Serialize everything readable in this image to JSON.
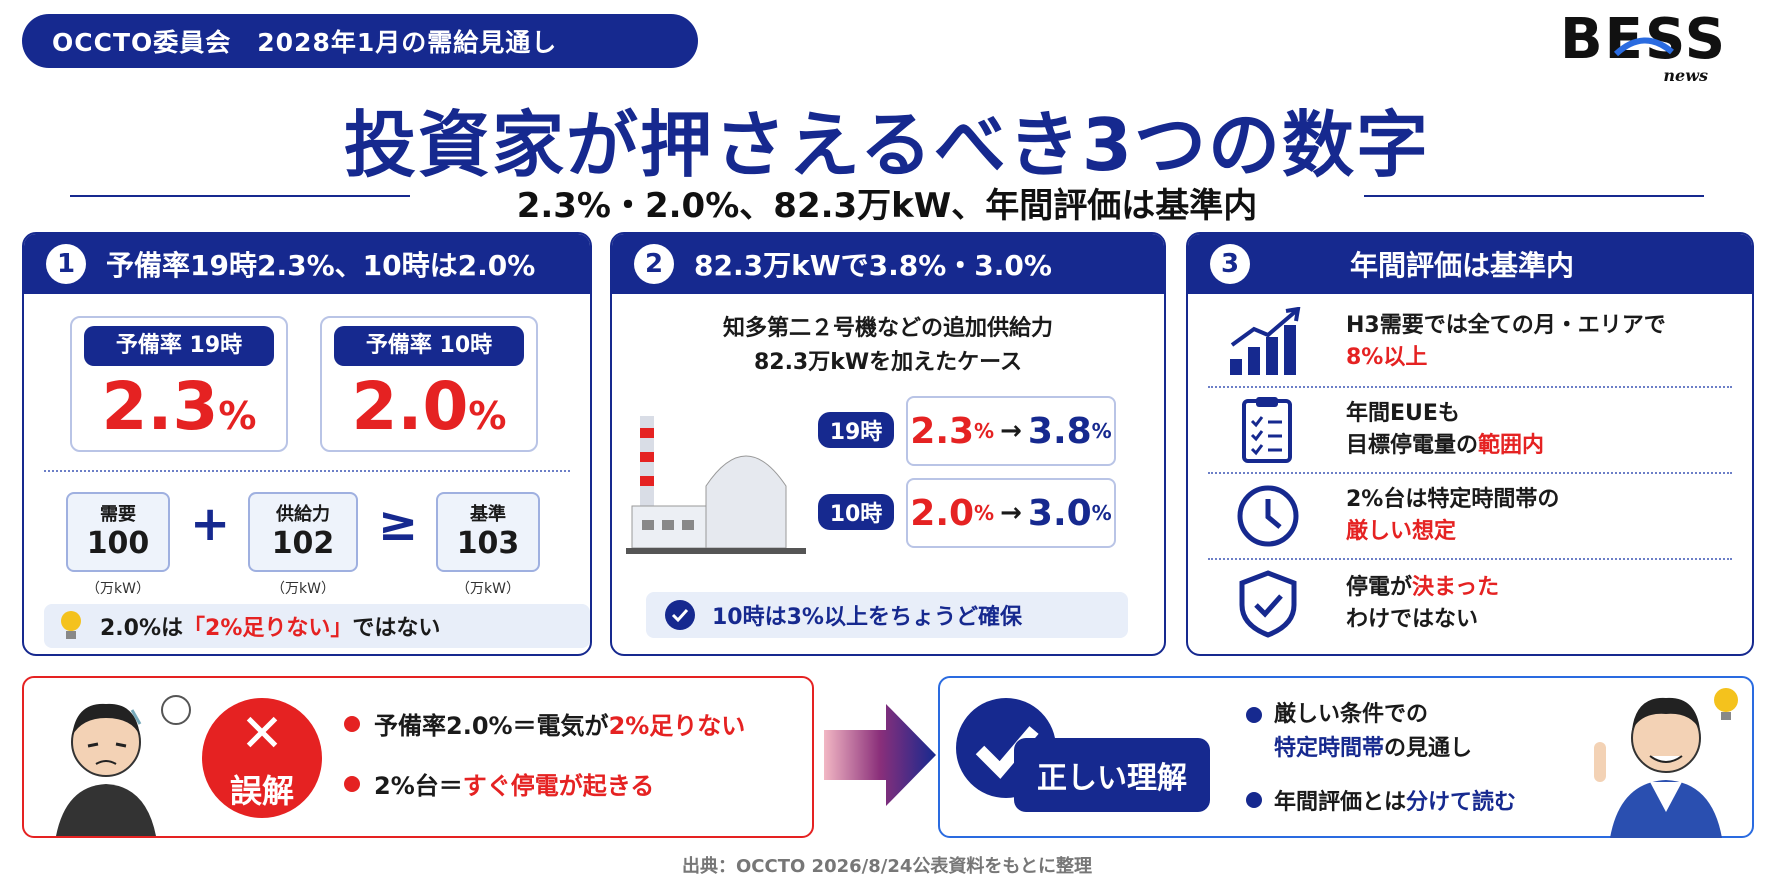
{
  "header": {
    "badge": "OCCTO委員会　2028年1月の需給見通し",
    "title": "投資家が押さえるべき3つの数字",
    "subtitle": "2.3%・2.0%、82.3万kW、年間評価は基準内",
    "logo_main": "BESS",
    "logo_sub": "news"
  },
  "card1": {
    "num": "1",
    "heading": "予備率19時2.3%、10時は2.0%",
    "rate19_label": "予備率 19時",
    "rate19_value": "2.3",
    "rate10_label": "予備率 10時",
    "rate10_value": "2.0",
    "percent": "%",
    "demand_label": "需要",
    "demand_value": "100",
    "supply_label": "供給力",
    "supply_value": "102",
    "standard_label": "基準",
    "standard_value": "103",
    "unit": "（万kW）",
    "plus": "+",
    "geq": "≥",
    "tip_pre": "2.0%は",
    "tip_red": "「2%足りない」",
    "tip_post": "ではない"
  },
  "card2": {
    "num": "2",
    "heading": "82.3万kWで3.8%・3.0%",
    "desc_line1": "知多第二２号機などの追加供給力",
    "desc_line2": "82.3万kWを加えたケース",
    "row19_time": "19時",
    "row19_from": "2.3",
    "row19_to": "3.8",
    "row10_time": "10時",
    "row10_from": "2.0",
    "row10_to": "3.0",
    "percent": "%",
    "arrow": "→",
    "check_text": "10時は3%以上をちょうど確保"
  },
  "card3": {
    "num": "3",
    "heading": "年間評価は基準内",
    "items": [
      {
        "line1_pre": "H3需要では全ての月・エリアで",
        "line1_red": "",
        "line2_pre": "",
        "line2_red": "8%以上",
        "line2_post": "",
        "icon": "growth-chart-icon"
      },
      {
        "line1_pre": "年間EUEも",
        "line1_red": "",
        "line2_pre": "目標停電量の",
        "line2_red": "範囲内",
        "line2_post": "",
        "icon": "checklist-icon"
      },
      {
        "line1_pre": "2%台は特定時間帯の",
        "line1_red": "",
        "line2_pre": "",
        "line2_red": "厳しい想定",
        "line2_post": "",
        "icon": "clock-icon"
      },
      {
        "line1_pre": "停電が",
        "line1_red": "決まった",
        "line2_pre": "わけではない",
        "line2_red": "",
        "line2_post": "",
        "icon": "shield-check-icon"
      }
    ]
  },
  "misconception": {
    "label": "誤解",
    "item1_pre": "予備率2.0%＝電気が",
    "item1_red": "2%足りない",
    "item2_pre": "2%台＝",
    "item2_red": "すぐ停電が起きる"
  },
  "correct": {
    "label": "正しい理解",
    "item1_line1": "厳しい条件での",
    "item1_blue": "特定時間帯",
    "item1_line2_post": "の見通し",
    "item2_pre": "年間評価とは",
    "item2_blue": "分けて読む"
  },
  "source": "出典：OCCTO 2026/8/24公表資料をもとに整理",
  "colors": {
    "navy": "#16298f",
    "red": "#e52222",
    "light": "#e8eef9"
  }
}
